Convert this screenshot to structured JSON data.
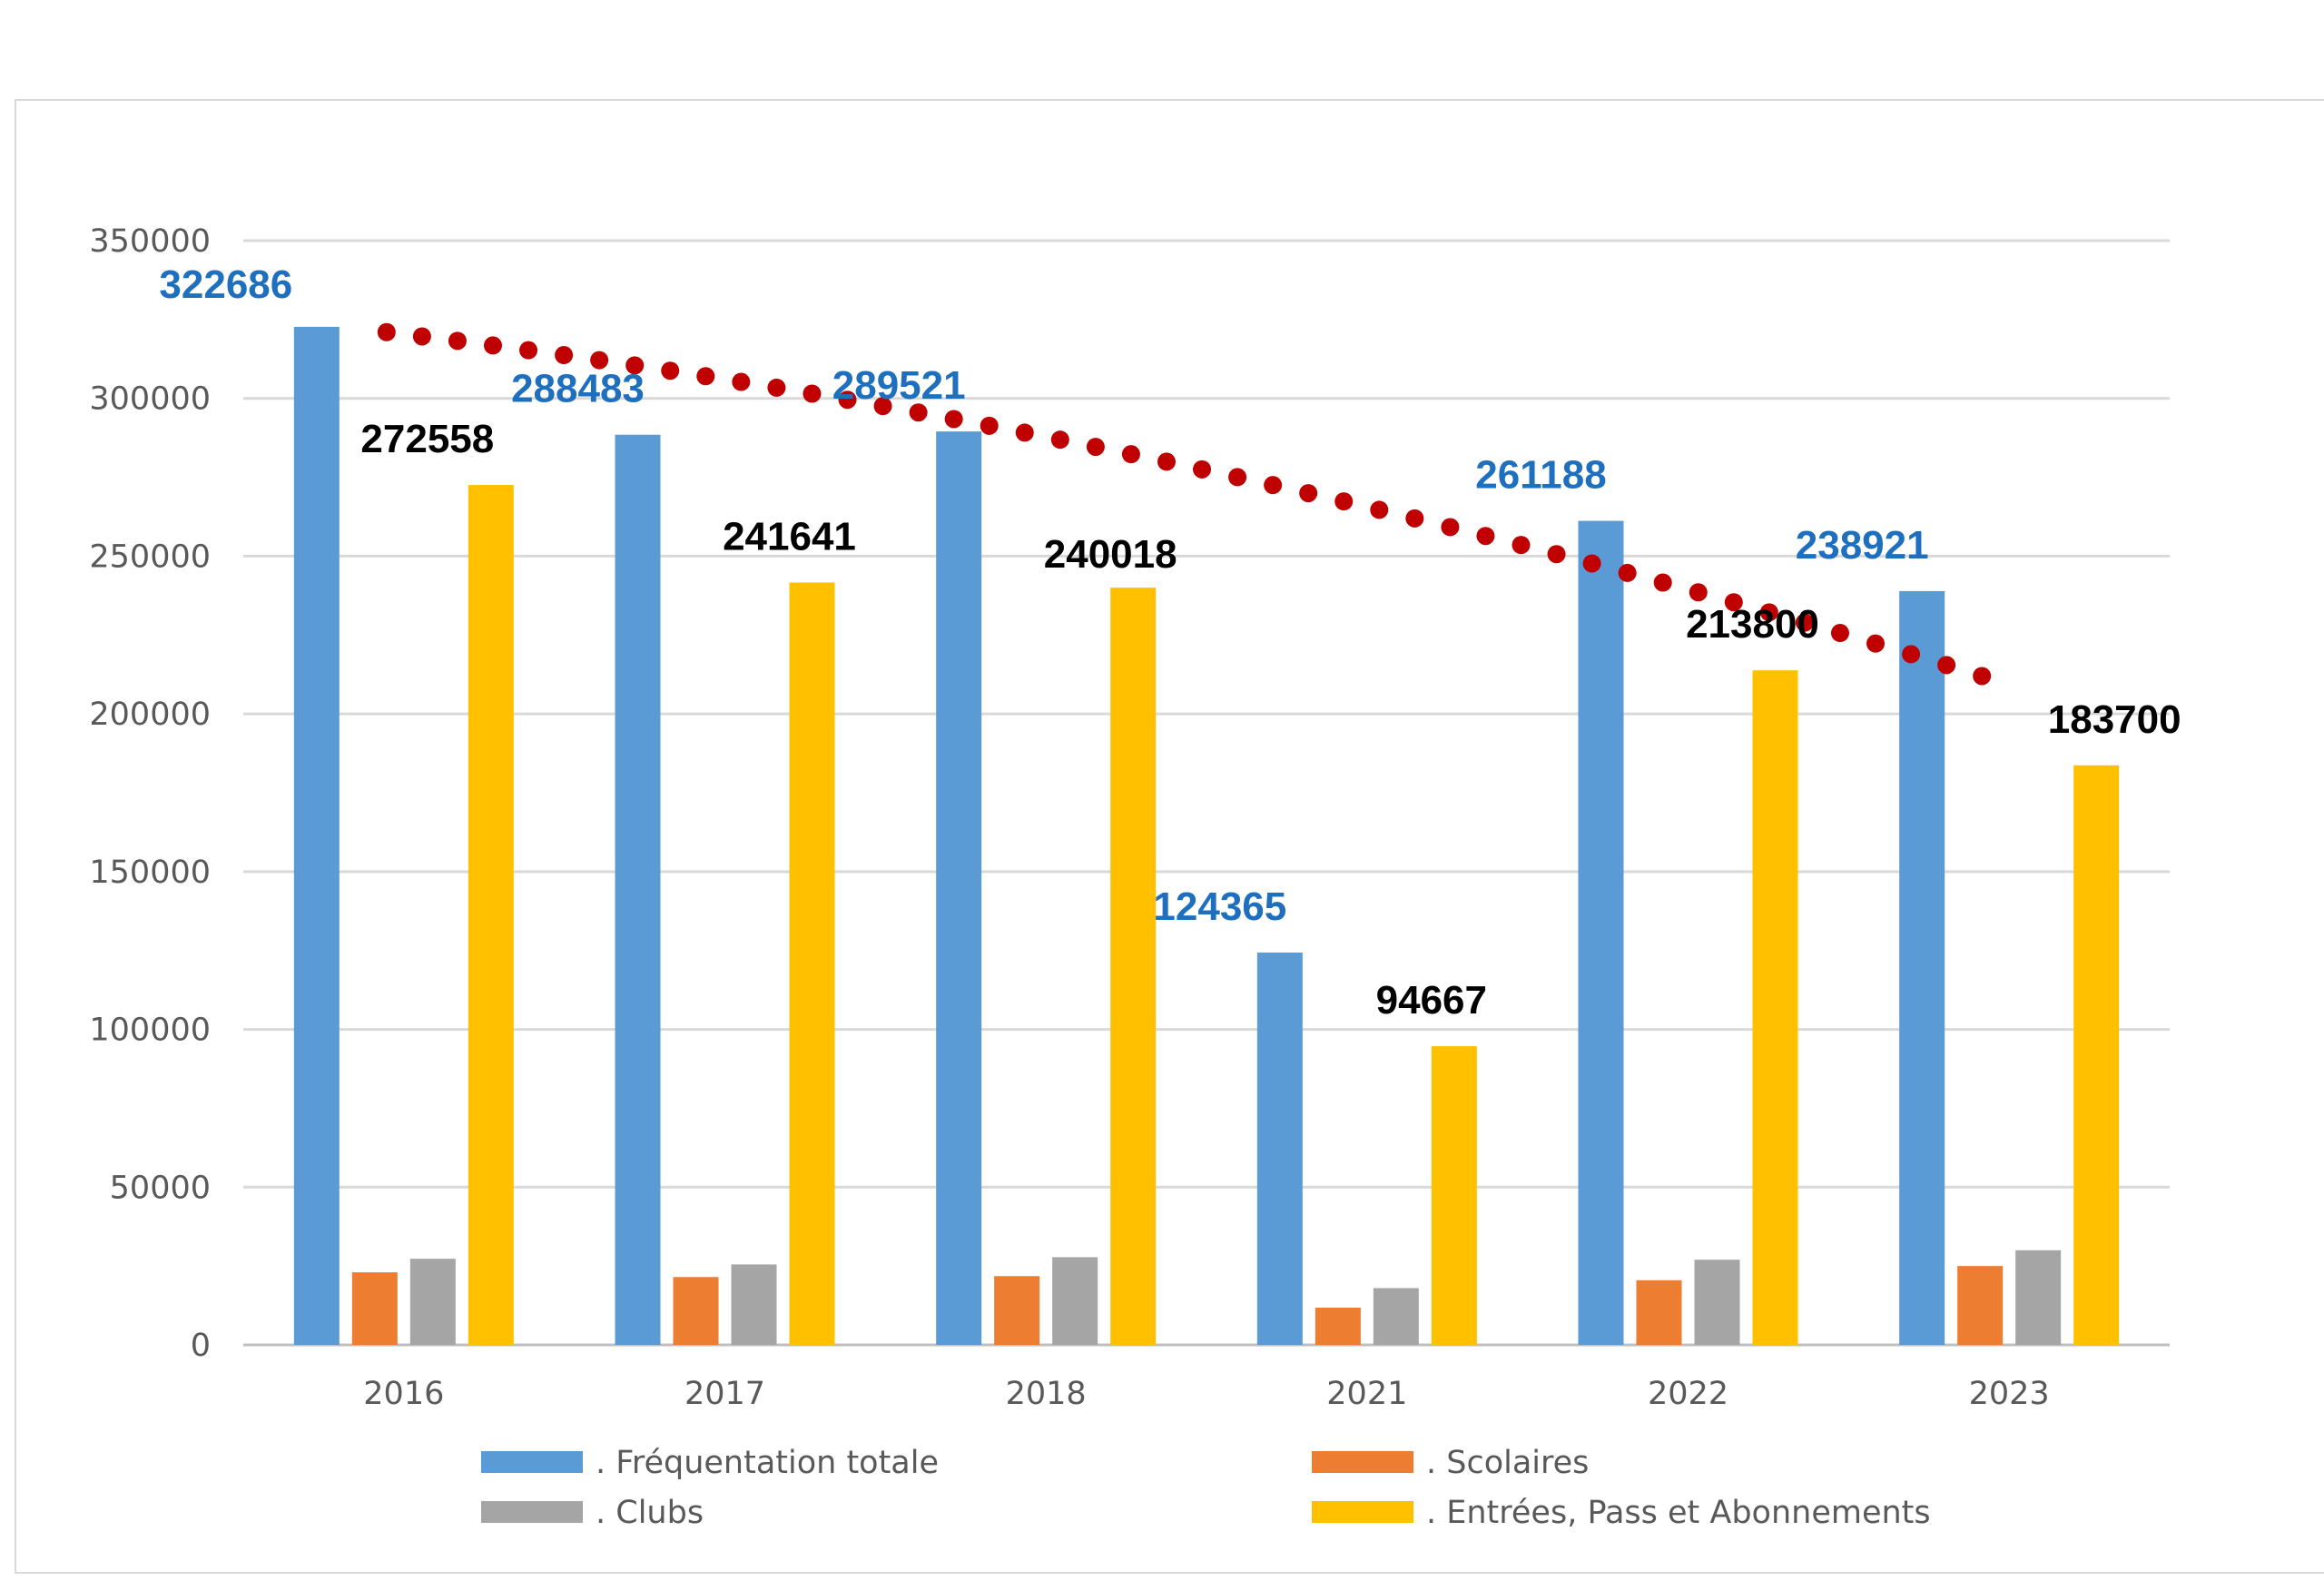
{
  "chart_data": {
    "type": "bar",
    "categories": [
      "2016",
      "2017",
      "2018",
      "2021",
      "2022",
      "2023"
    ],
    "series": [
      {
        "name": ". Fréquentation totale",
        "color": "#5b9bd5",
        "values": [
          322686,
          288483,
          289521,
          124365,
          261188,
          238921
        ],
        "labels": [
          "322686",
          "288483",
          "289521",
          "124365",
          "261188",
          "238921"
        ],
        "label_color": "#1f6fbf"
      },
      {
        "name": ". Scolaires",
        "color": "#ed7d31",
        "values": [
          23000,
          21500,
          21800,
          11800,
          20500,
          25000
        ]
      },
      {
        "name": ". Clubs",
        "color": "#a5a5a5",
        "values": [
          27300,
          25500,
          27800,
          18000,
          27000,
          30000
        ]
      },
      {
        "name": ". Entrées, Pass et Abonnements",
        "color": "#ffc000",
        "values": [
          272558,
          241641,
          240018,
          94667,
          213800,
          183700
        ],
        "labels": [
          "272558",
          "241641",
          "240018",
          "94667",
          "213800",
          "183700"
        ],
        "label_color": "#000000"
      }
    ],
    "trendline": {
      "color": "#c00000",
      "style": "dotted",
      "start": 321000,
      "end": 212000
    },
    "y_ticks": [
      "0",
      "50000",
      "100000",
      "150000",
      "200000",
      "250000",
      "300000",
      "350000"
    ],
    "ylim": [
      0,
      350000
    ],
    "grid": true,
    "legend_position": "bottom",
    "title": "",
    "xlabel": "",
    "ylabel": ""
  }
}
